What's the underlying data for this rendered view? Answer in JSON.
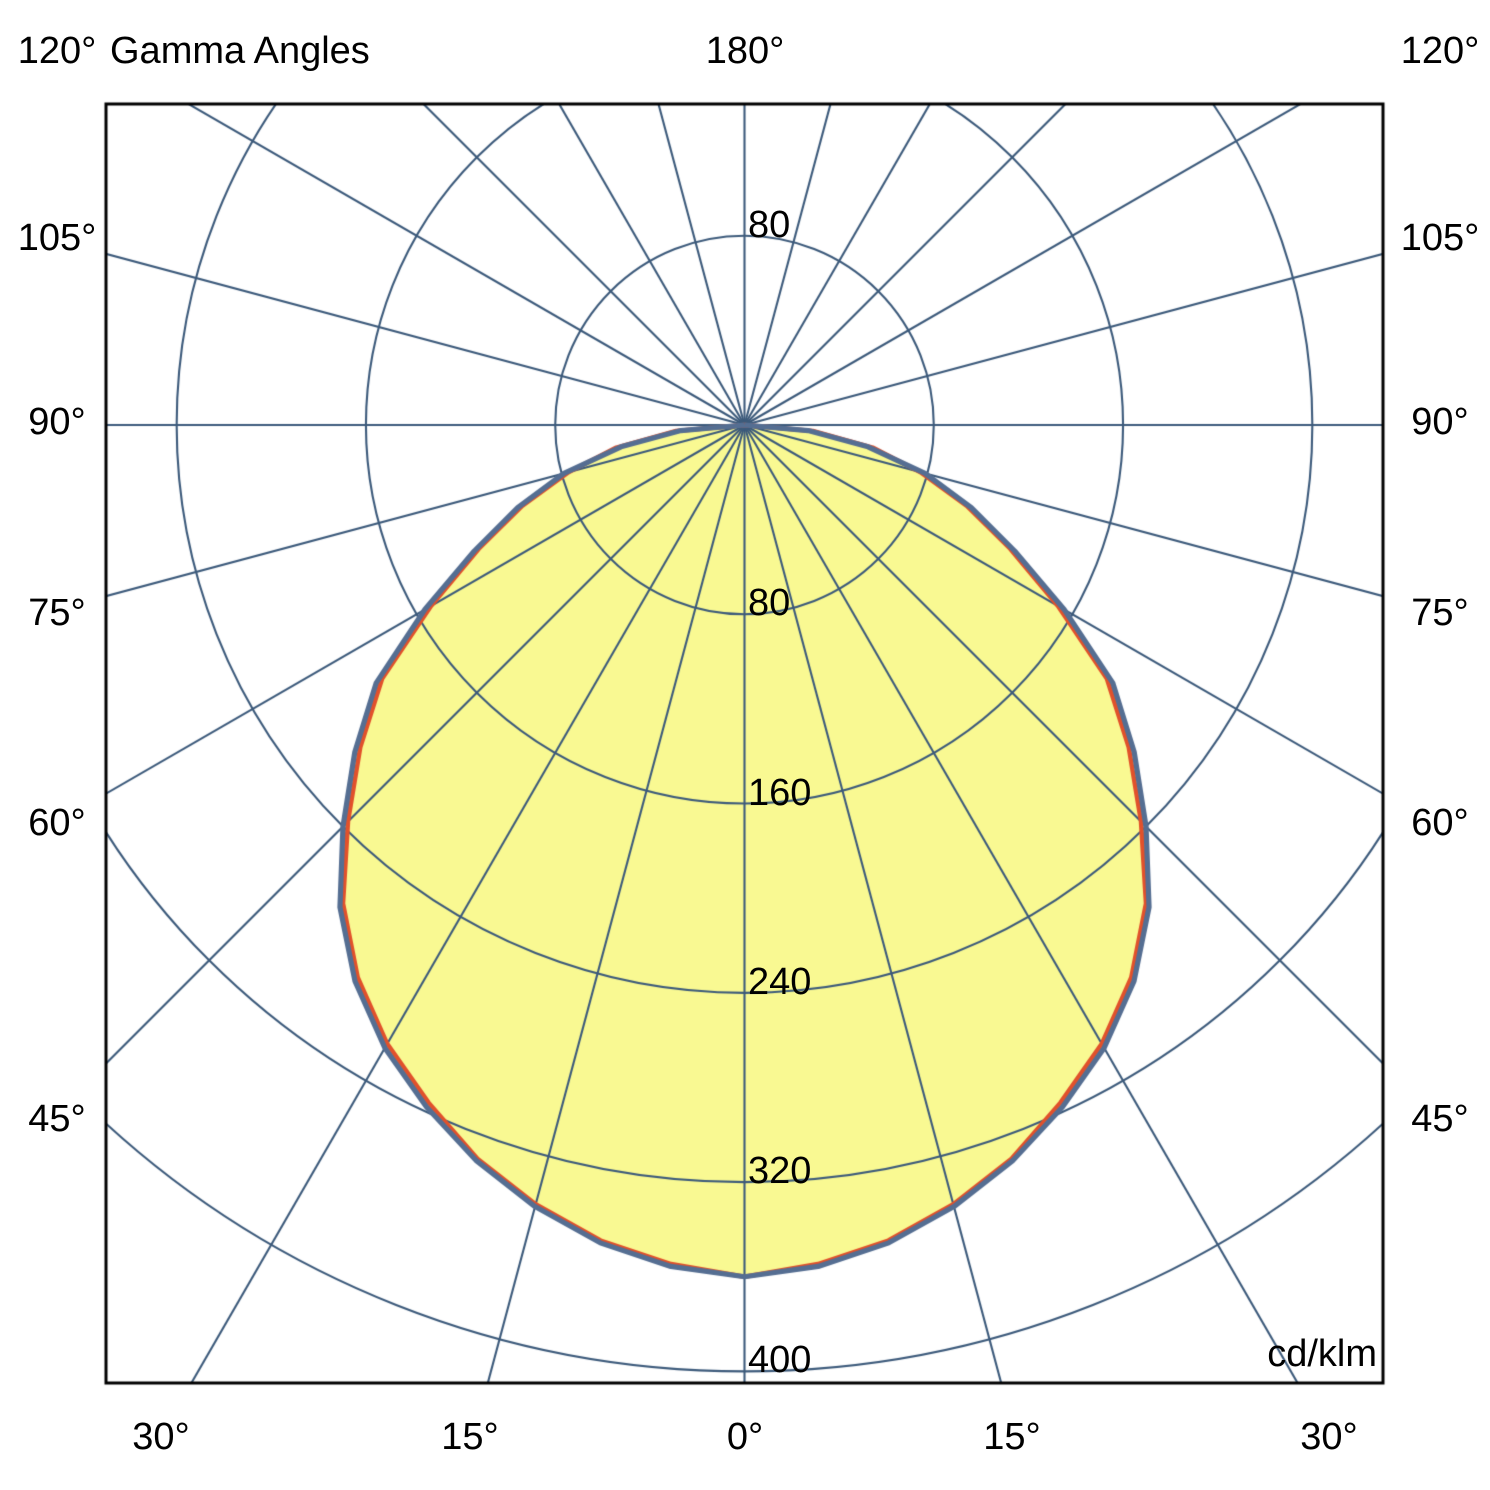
{
  "page": {
    "background": "#ffffff"
  },
  "title": "Gamma Angles",
  "unit_label": "cd/klm",
  "chart_data": {
    "type": "polar-photometric-intensity-curve",
    "title": "Gamma Angles",
    "unit": "cd/klm",
    "orientation": "gamma 0 deg points straight down; polar pole at top-center of grid",
    "ray_step_deg": 15,
    "grid_on": true,
    "top_angle_labels": [
      "120°",
      "180°",
      "120°"
    ],
    "side_angle_labels": [
      "105°",
      "90°",
      "75°",
      "60°",
      "45°"
    ],
    "bottom_angle_labels": [
      "30°",
      "15°",
      "0°",
      "15°",
      "30°"
    ],
    "ring_values": [
      80,
      160,
      240,
      320,
      400
    ],
    "ring_labels_below": [
      "80",
      "160",
      "240",
      "320",
      "400"
    ],
    "ring_label_above": "80",
    "r_axis_max_units": 405,
    "gamma_deg": [
      0,
      5,
      10,
      15,
      20,
      25,
      30,
      35,
      40,
      45,
      50,
      55,
      60,
      65,
      70,
      75,
      80,
      85,
      90
    ],
    "series": [
      {
        "name": "blue-outline-curve",
        "color": "#556e92",
        "values": [
          360,
          357,
          351,
          342,
          331,
          318,
          304,
          287,
          266,
          240,
          215,
          190,
          156,
          126,
          102,
          79,
          53,
          27,
          0
        ]
      },
      {
        "name": "red-curve",
        "color": "#e1512b",
        "values": [
          360,
          356,
          350,
          341,
          330,
          316,
          302,
          285,
          264,
          237,
          212,
          187,
          153,
          124,
          100,
          77,
          55,
          29,
          0
        ]
      }
    ],
    "symmetry": "mirrored left-right about vertical axis",
    "fill_color": "#f9f992",
    "grid_color": "#3c5a7b",
    "frame_color": "#000000",
    "peak_value_cd_per_klm": 360
  }
}
